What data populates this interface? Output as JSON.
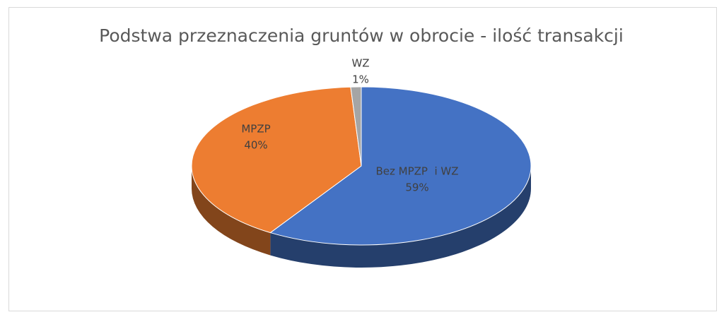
{
  "chart_data": {
    "type": "pie3d",
    "title": "Podstwa przeznaczenia gruntów w obrocie - ilość transakcji",
    "categories": [
      "Bez MPZP  i WZ",
      "MPZP",
      "WZ"
    ],
    "values": [
      59,
      40,
      1
    ],
    "value_labels": [
      "59%",
      "40%",
      "1%"
    ],
    "colors": [
      "#4472c4",
      "#ed7d31",
      "#a5a5a5"
    ]
  }
}
